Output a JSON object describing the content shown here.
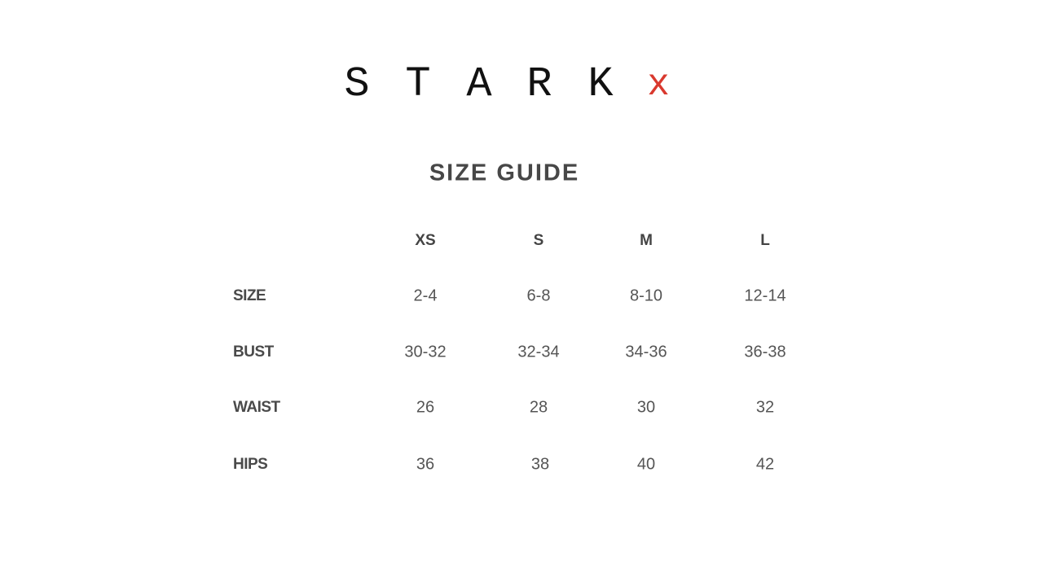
{
  "brand": {
    "letters": [
      "S",
      "T",
      "A",
      "R",
      "K"
    ],
    "suffix": "x",
    "suffix_color": "#d9392e"
  },
  "title": "SIZE GUIDE",
  "table": {
    "columns": [
      "XS",
      "S",
      "M",
      "L"
    ],
    "rows": [
      {
        "label": "SIZE",
        "values": [
          "2-4",
          "6-8",
          "8-10",
          "12-14"
        ]
      },
      {
        "label": "BUST",
        "values": [
          "30-32",
          "32-34",
          "34-36",
          "36-38"
        ]
      },
      {
        "label": "WAIST",
        "values": [
          "26",
          "28",
          "30",
          "32"
        ]
      },
      {
        "label": "HIPS",
        "values": [
          "36",
          "38",
          "40",
          "42"
        ]
      }
    ]
  }
}
